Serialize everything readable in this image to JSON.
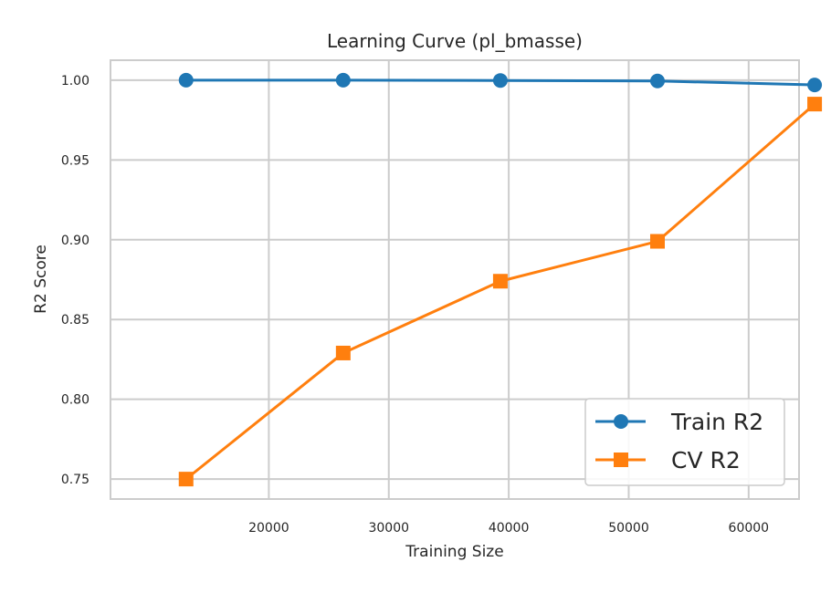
{
  "chart_data": {
    "type": "line",
    "title": "Learning Curve (pl_bmasse)",
    "xlabel": "Training Size",
    "ylabel": "R2 Score",
    "x": [
      13100,
      26200,
      39300,
      52400,
      65500
    ],
    "xlim": [
      6800,
      64200
    ],
    "ylim": [
      0.7375,
      1.0125
    ],
    "xticks": [
      20000,
      30000,
      40000,
      50000,
      60000
    ],
    "xtick_labels": [
      "20000",
      "30000",
      "40000",
      "50000",
      "60000"
    ],
    "yticks": [
      0.75,
      0.8,
      0.85,
      0.9,
      0.95,
      1.0
    ],
    "ytick_labels": [
      "0.75",
      "0.80",
      "0.85",
      "0.90",
      "0.95",
      "1.00"
    ],
    "grid": true,
    "legend_position": "lower-right",
    "series": [
      {
        "name": "Train R2",
        "marker": "circle",
        "color": "#1f77b4",
        "values": [
          1.0,
          1.0,
          0.9998,
          0.9995,
          0.997
        ]
      },
      {
        "name": "CV R2",
        "marker": "square",
        "color": "#ff7f0e",
        "values": [
          0.75,
          0.829,
          0.874,
          0.899,
          0.985
        ]
      }
    ]
  }
}
